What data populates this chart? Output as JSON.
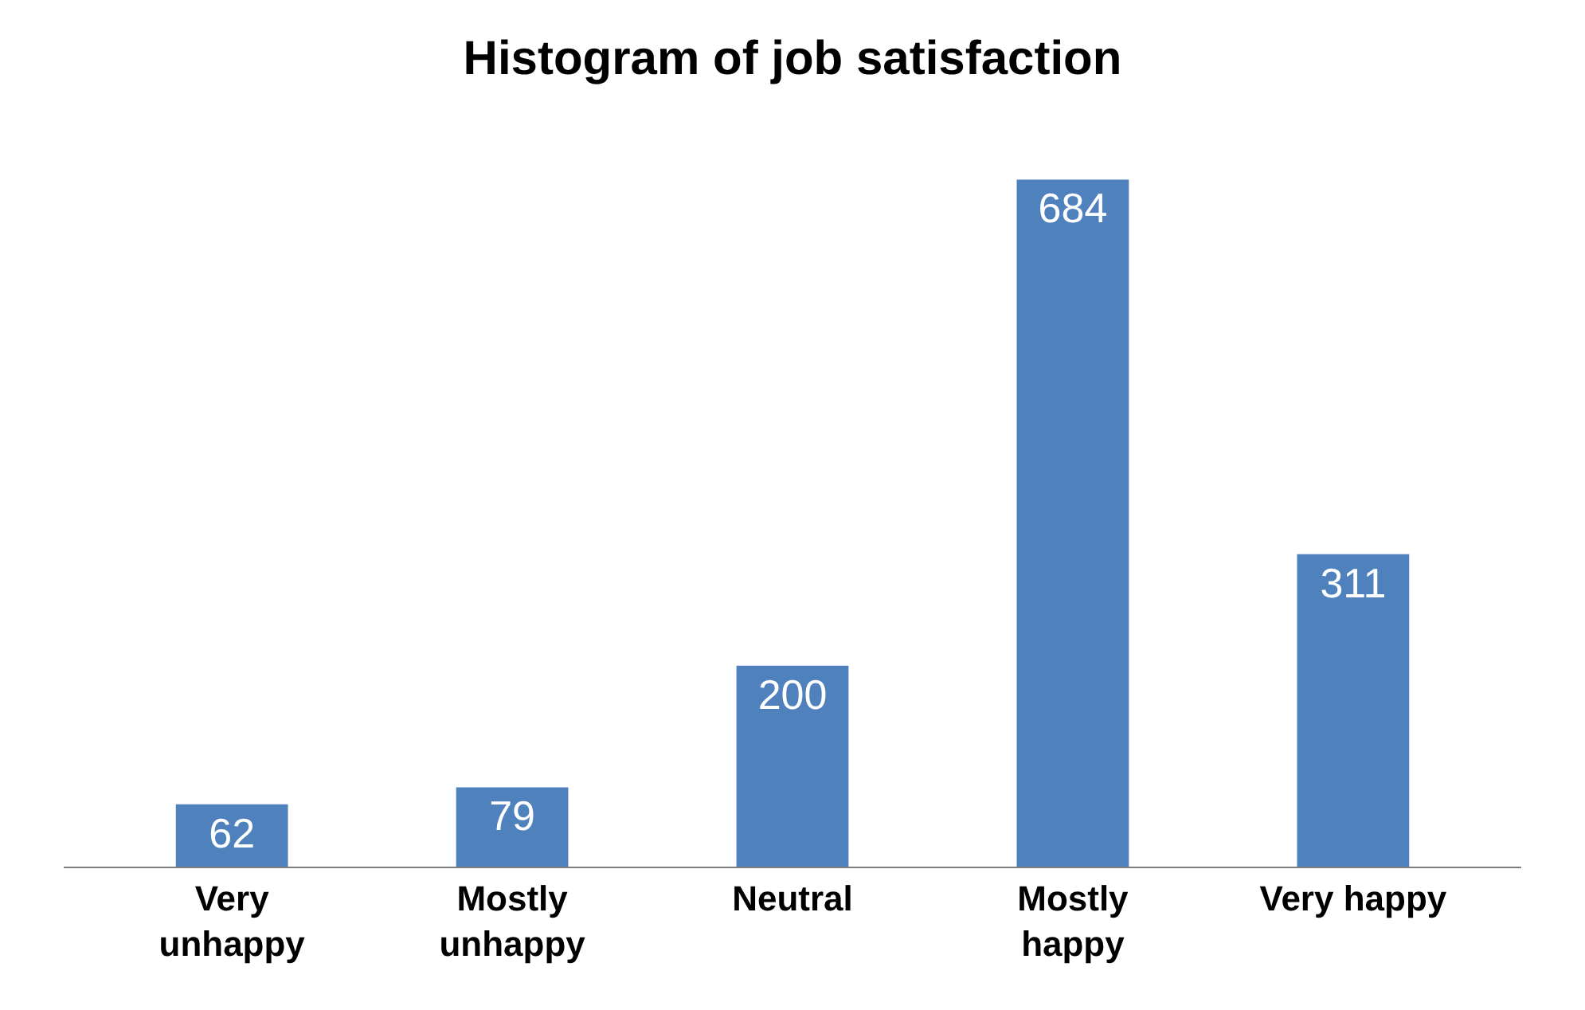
{
  "chart_data": {
    "type": "bar",
    "title": "Histogram of job satisfaction",
    "categories": [
      "Very unhappy",
      "Mostly unhappy",
      "Neutral",
      "Mostly happy",
      "Very happy"
    ],
    "values": [
      62,
      79,
      200,
      684,
      311
    ],
    "color": "#4f81bd",
    "data_labels": true
  }
}
